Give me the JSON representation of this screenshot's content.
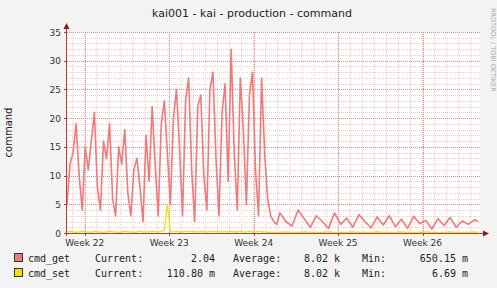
{
  "chart_data": {
    "type": "line",
    "title": "kai001 - kai - production - command",
    "ylabel": "command",
    "annotations": [
      "RRDTOOL / TOBI OETIKER"
    ],
    "grid": true,
    "xlim": [
      21.79,
      26.68
    ],
    "xticks": [
      {
        "value": 22,
        "label": "Week 22"
      },
      {
        "value": 23,
        "label": "Week 23"
      },
      {
        "value": 24,
        "label": "Week 24"
      },
      {
        "value": 25,
        "label": "Week 25"
      },
      {
        "value": 26,
        "label": "Week 26"
      }
    ],
    "ylim": [
      0,
      35
    ],
    "yticks": [
      0,
      5,
      10,
      15,
      20,
      25,
      30,
      35
    ],
    "x": [
      21.79,
      21.826,
      21.862,
      21.898,
      21.934,
      21.97,
      22.006,
      22.042,
      22.078,
      22.114,
      22.15,
      22.186,
      22.222,
      22.258,
      22.294,
      22.33,
      22.366,
      22.402,
      22.438,
      22.474,
      22.51,
      22.546,
      22.582,
      22.618,
      22.654,
      22.69,
      22.726,
      22.762,
      22.798,
      22.834,
      22.87,
      22.906,
      22.942,
      22.978,
      23.014,
      23.05,
      23.086,
      23.122,
      23.158,
      23.194,
      23.23,
      23.266,
      23.302,
      23.338,
      23.374,
      23.41,
      23.446,
      23.482,
      23.518,
      23.554,
      23.59,
      23.626,
      23.662,
      23.698,
      23.734,
      23.77,
      23.806,
      23.842,
      23.878,
      23.914,
      23.95,
      23.986,
      24.022,
      24.058,
      24.094,
      24.13,
      24.166,
      24.202,
      24.238,
      24.274,
      24.31,
      24.382,
      24.454,
      24.526,
      24.598,
      24.67,
      24.742,
      24.814,
      24.886,
      24.958,
      25.03,
      25.102,
      25.174,
      25.246,
      25.318,
      25.39,
      25.462,
      25.534,
      25.606,
      25.678,
      25.75,
      25.822,
      25.894,
      25.966,
      26.038,
      26.11,
      26.182,
      26.254,
      26.326,
      26.398,
      26.47,
      26.542,
      26.614,
      26.66
    ],
    "series": [
      {
        "name": "cmd_get",
        "color": "#f07a7a",
        "stats": [
          [
            "Current:",
            "2.04"
          ],
          [
            "Average:",
            "8.02 k"
          ],
          [
            "Min:",
            "650.15 m"
          ]
        ],
        "values": [
          5,
          12,
          14,
          19,
          10,
          4,
          15,
          11,
          16,
          21,
          8,
          4,
          16,
          13,
          19,
          6,
          3,
          15,
          12,
          18,
          7,
          3,
          11,
          13,
          8,
          2,
          17,
          9,
          22,
          12,
          3,
          19,
          23,
          14,
          5,
          20,
          25,
          15,
          3,
          23,
          27,
          11,
          2,
          22,
          24,
          10,
          4,
          25,
          28,
          13,
          3,
          21,
          26,
          9,
          32,
          14,
          4,
          27,
          18,
          5,
          24,
          28,
          11,
          3,
          27,
          14,
          6,
          3,
          2,
          1.5,
          3.5,
          2,
          1.2,
          4,
          2.5,
          1,
          3,
          2,
          0.8,
          3.5,
          1.5,
          2.6,
          1,
          3.2,
          2,
          0.9,
          2.8,
          1.4,
          3,
          1.1,
          2.4,
          0.8,
          2.9,
          1.6,
          2.2,
          0.7,
          2.5,
          1.3,
          2.7,
          1,
          2.1,
          1.5,
          2.3,
          2.04
        ]
      },
      {
        "name": "cmd_set",
        "color": "#f2e200",
        "stats": [
          [
            "Current:",
            "110.80 m"
          ],
          [
            "Average:",
            "8.02 k"
          ],
          [
            "Min:",
            "6.69 m"
          ]
        ],
        "values": [
          0.2,
          0.3,
          0.2,
          0.1,
          0.2,
          0.3,
          0.2,
          0.2,
          0.1,
          0.3,
          0.2,
          0.2,
          0.1,
          0.2,
          0.3,
          0.2,
          0.2,
          0.1,
          0.2,
          0.3,
          0.2,
          0.2,
          0.1,
          0.2,
          0.3,
          0.2,
          0.2,
          0.2,
          0.3,
          0.2,
          0.2,
          0.3,
          0.4,
          5,
          0.3,
          0.2,
          0.3,
          0.2,
          0.2,
          0.3,
          0.2,
          0.3,
          0.2,
          0.2,
          0.3,
          0.2,
          0.2,
          0.3,
          0.2,
          0.3,
          0.2,
          0.2,
          0.3,
          0.2,
          0.3,
          0.2,
          0.2,
          0.3,
          0.2,
          0.2,
          0.3,
          0.2,
          0.2,
          0.3,
          0.2,
          0.2,
          0.1,
          0.1,
          0.1,
          0.1,
          0.1,
          0.2,
          0.1,
          0.1,
          0.2,
          0.1,
          0.1,
          0.1,
          0.2,
          0.1,
          0.1,
          0.1,
          0.2,
          0.1,
          0.1,
          0.1,
          0.2,
          0.1,
          0.1,
          0.1,
          0.2,
          0.1,
          0.1,
          0.1,
          0.2,
          0.1,
          0.1,
          0.1,
          0.2,
          0.1,
          0.1,
          0.1,
          0.2,
          0.11
        ]
      }
    ]
  }
}
